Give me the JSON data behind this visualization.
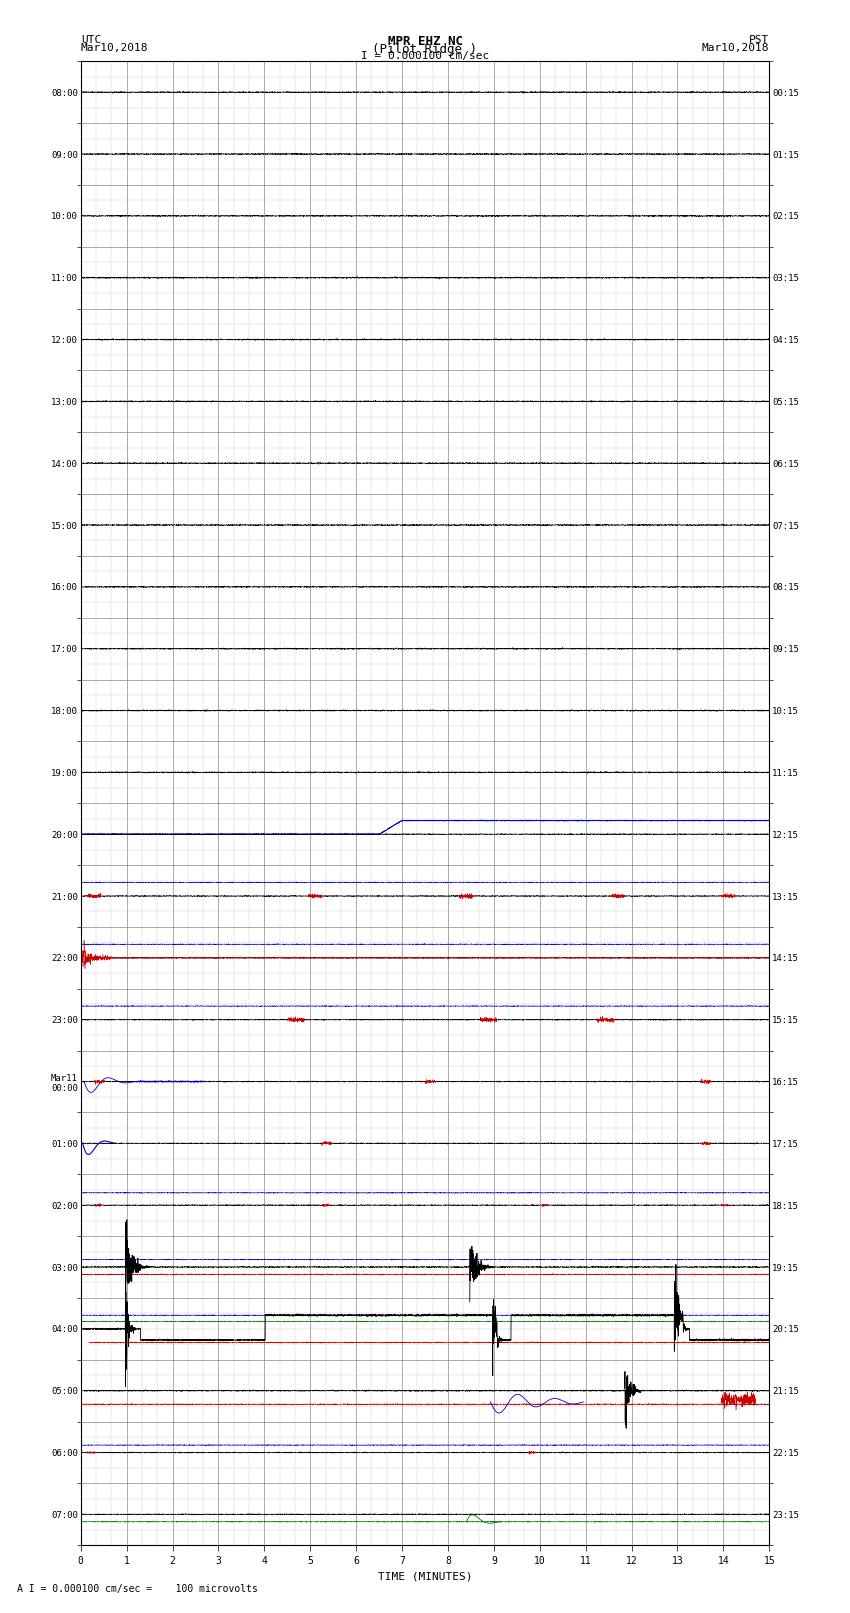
{
  "title_line1": "MPR EHZ NC",
  "title_line2": "(Pilot Ridge )",
  "scale_label": "I = 0.000100 cm/sec",
  "footer_label": "A I = 0.000100 cm/sec =    100 microvolts",
  "xlabel": "TIME (MINUTES)",
  "utc_times": [
    "08:00",
    "09:00",
    "10:00",
    "11:00",
    "12:00",
    "13:00",
    "14:00",
    "15:00",
    "16:00",
    "17:00",
    "18:00",
    "19:00",
    "20:00",
    "21:00",
    "22:00",
    "23:00",
    "Mar11\n00:00",
    "01:00",
    "02:00",
    "03:00",
    "04:00",
    "05:00",
    "06:00",
    "07:00"
  ],
  "pst_times": [
    "00:15",
    "01:15",
    "02:15",
    "03:15",
    "04:15",
    "05:15",
    "06:15",
    "07:15",
    "08:15",
    "09:15",
    "10:15",
    "11:15",
    "12:15",
    "13:15",
    "14:15",
    "15:15",
    "16:15",
    "17:15",
    "18:15",
    "19:15",
    "20:15",
    "21:15",
    "22:15",
    "23:15"
  ],
  "num_rows": 24,
  "minutes_per_row": 15,
  "bg_color": "#ffffff",
  "major_grid_color": "#888888",
  "minor_grid_color": "#cccccc",
  "trace_color_normal": "#000000",
  "trace_color_red": "#cc0000",
  "trace_color_blue": "#0000cc",
  "trace_color_green": "#007700"
}
